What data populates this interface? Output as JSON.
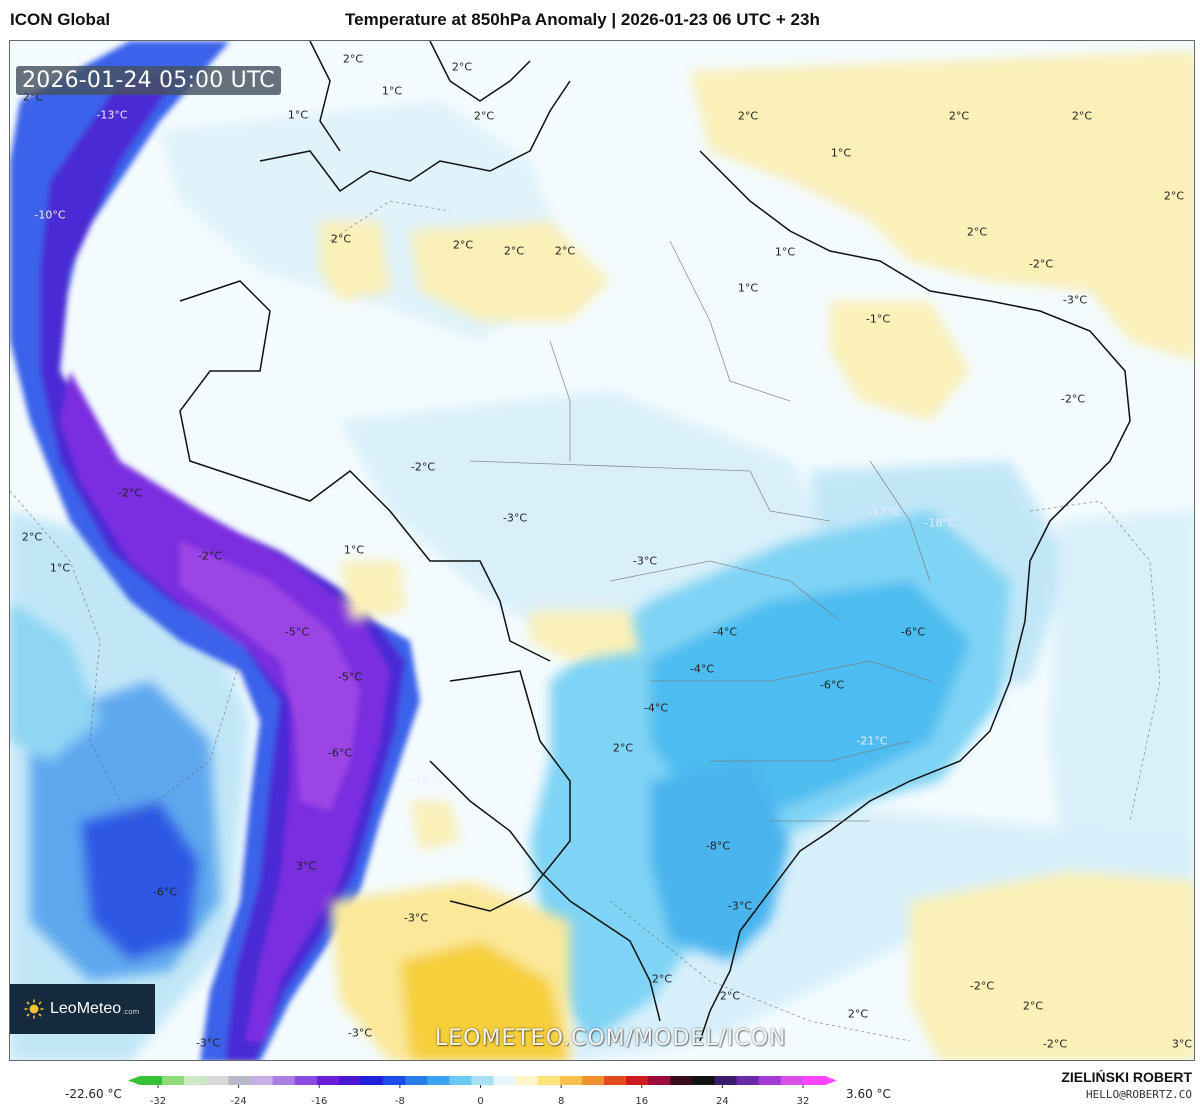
{
  "header": {
    "model_name": "ICON Global",
    "title": "Temperature at 850hPa Anomaly | 2026-01-23 06 UTC + 23h"
  },
  "map": {
    "valid_time": "2026-01-24 05:00 UTC",
    "watermark": "LEOMETEO.COM/MODEL/ICON",
    "brand": {
      "name": "LeoMeteo",
      "suffix": ".com",
      "icon": "sun-icon"
    },
    "labels": [
      "2°C",
      "2°C",
      "1°C",
      "-13°C",
      "-10°C",
      "2°C",
      "1°C",
      "2°C",
      "2°C",
      "2°C",
      "2°C",
      "1°C",
      "2°C",
      "1°C",
      "1°C",
      "2°C",
      "2°C",
      "2°C",
      "2°C",
      "2°C",
      "-2°C",
      "-3°C",
      "-1°C",
      "-2°C",
      "-2°C",
      "-3°C",
      "-3°C",
      "-17°C",
      "-18°C",
      "-2°C",
      "-2°C",
      "2°C",
      "1°C",
      "1°C",
      "-15°C",
      "-19°C",
      "-5°C",
      "-5°C",
      "-4°C",
      "-6°C",
      "-4°C",
      "-6°C",
      "-4°C",
      "-21°C",
      "2°C",
      "-6°C",
      "-19°C",
      "-8°C",
      "3°C",
      "-6°C",
      "-3°C",
      "-3°C",
      "2°C",
      "2°C",
      "-2°C",
      "2°C",
      "2°C",
      "-3°C",
      "-2°C",
      "3°C",
      "-3°C"
    ]
  },
  "colorbar": {
    "min_label": "-22.60 °C",
    "max_label": "3.60 °C",
    "tick_values": [
      -32,
      -24,
      -16,
      -8,
      0,
      8,
      16,
      24,
      32
    ],
    "colors": [
      "#36c136",
      "#8fda7a",
      "#cfe9c4",
      "#d8d8d8",
      "#b7b7c6",
      "#c8b0e6",
      "#a97fe3",
      "#8a4be0",
      "#6a1fd6",
      "#4a16cf",
      "#2020d8",
      "#1e4ce8",
      "#2a7de6",
      "#3aa3ef",
      "#6cc9f3",
      "#a8e0f6",
      "#e6f6fb",
      "#fdf6c8",
      "#fce37c",
      "#f8c14a",
      "#f0902e",
      "#e34b1f",
      "#cc1a1f",
      "#9b0d3a",
      "#3a0b1a",
      "#111111",
      "#3b1c6a",
      "#6a2aa8",
      "#a23bd6",
      "#d84fe8",
      "#ff44ff"
    ]
  },
  "author": {
    "name": "ZIELIŃSKI ROBERT",
    "email": "HELLO@ROBERTZ.CO"
  }
}
